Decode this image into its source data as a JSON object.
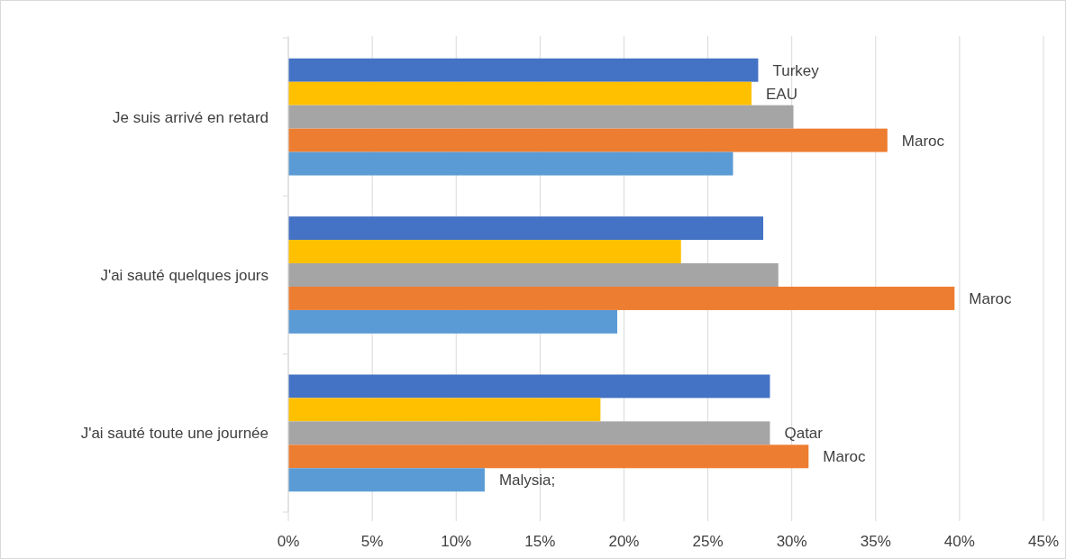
{
  "chart_data": {
    "type": "bar",
    "orientation": "horizontal",
    "categories": [
      "Je suis arrivé en retard",
      "J'ai sauté quelques jours",
      "J'ai sauté toute une journée"
    ],
    "series": [
      {
        "color": "#4472c4",
        "values": [
          28.0,
          28.3,
          28.7
        ],
        "value_labels": [
          "Turkey",
          null,
          null
        ]
      },
      {
        "color": "#ffc000",
        "values": [
          27.6,
          23.4,
          18.6
        ],
        "value_labels": [
          "EAU",
          null,
          null
        ]
      },
      {
        "color": "#a5a5a5",
        "values": [
          30.1,
          29.2,
          28.7
        ],
        "value_labels": [
          null,
          null,
          "Qatar"
        ]
      },
      {
        "color": "#ed7d31",
        "values": [
          35.7,
          39.7,
          31.0
        ],
        "value_labels": [
          "Maroc",
          "Maroc",
          "Maroc"
        ]
      },
      {
        "color": "#5b9bd5",
        "values": [
          26.5,
          19.6,
          11.7
        ],
        "value_labels": [
          null,
          null,
          "Malysia;"
        ]
      }
    ],
    "xlim": [
      0,
      45
    ],
    "xticks": [
      {
        "value": 0,
        "label": "0%"
      },
      {
        "value": 5,
        "label": "5%"
      },
      {
        "value": 10,
        "label": "10%"
      },
      {
        "value": 15,
        "label": "15%"
      },
      {
        "value": 20,
        "label": "20%"
      },
      {
        "value": 25,
        "label": "25%"
      },
      {
        "value": 30,
        "label": "30%"
      },
      {
        "value": 35,
        "label": "35%"
      },
      {
        "value": 40,
        "label": "40%"
      },
      {
        "value": 45,
        "label": "45%"
      }
    ],
    "grid": "x"
  }
}
